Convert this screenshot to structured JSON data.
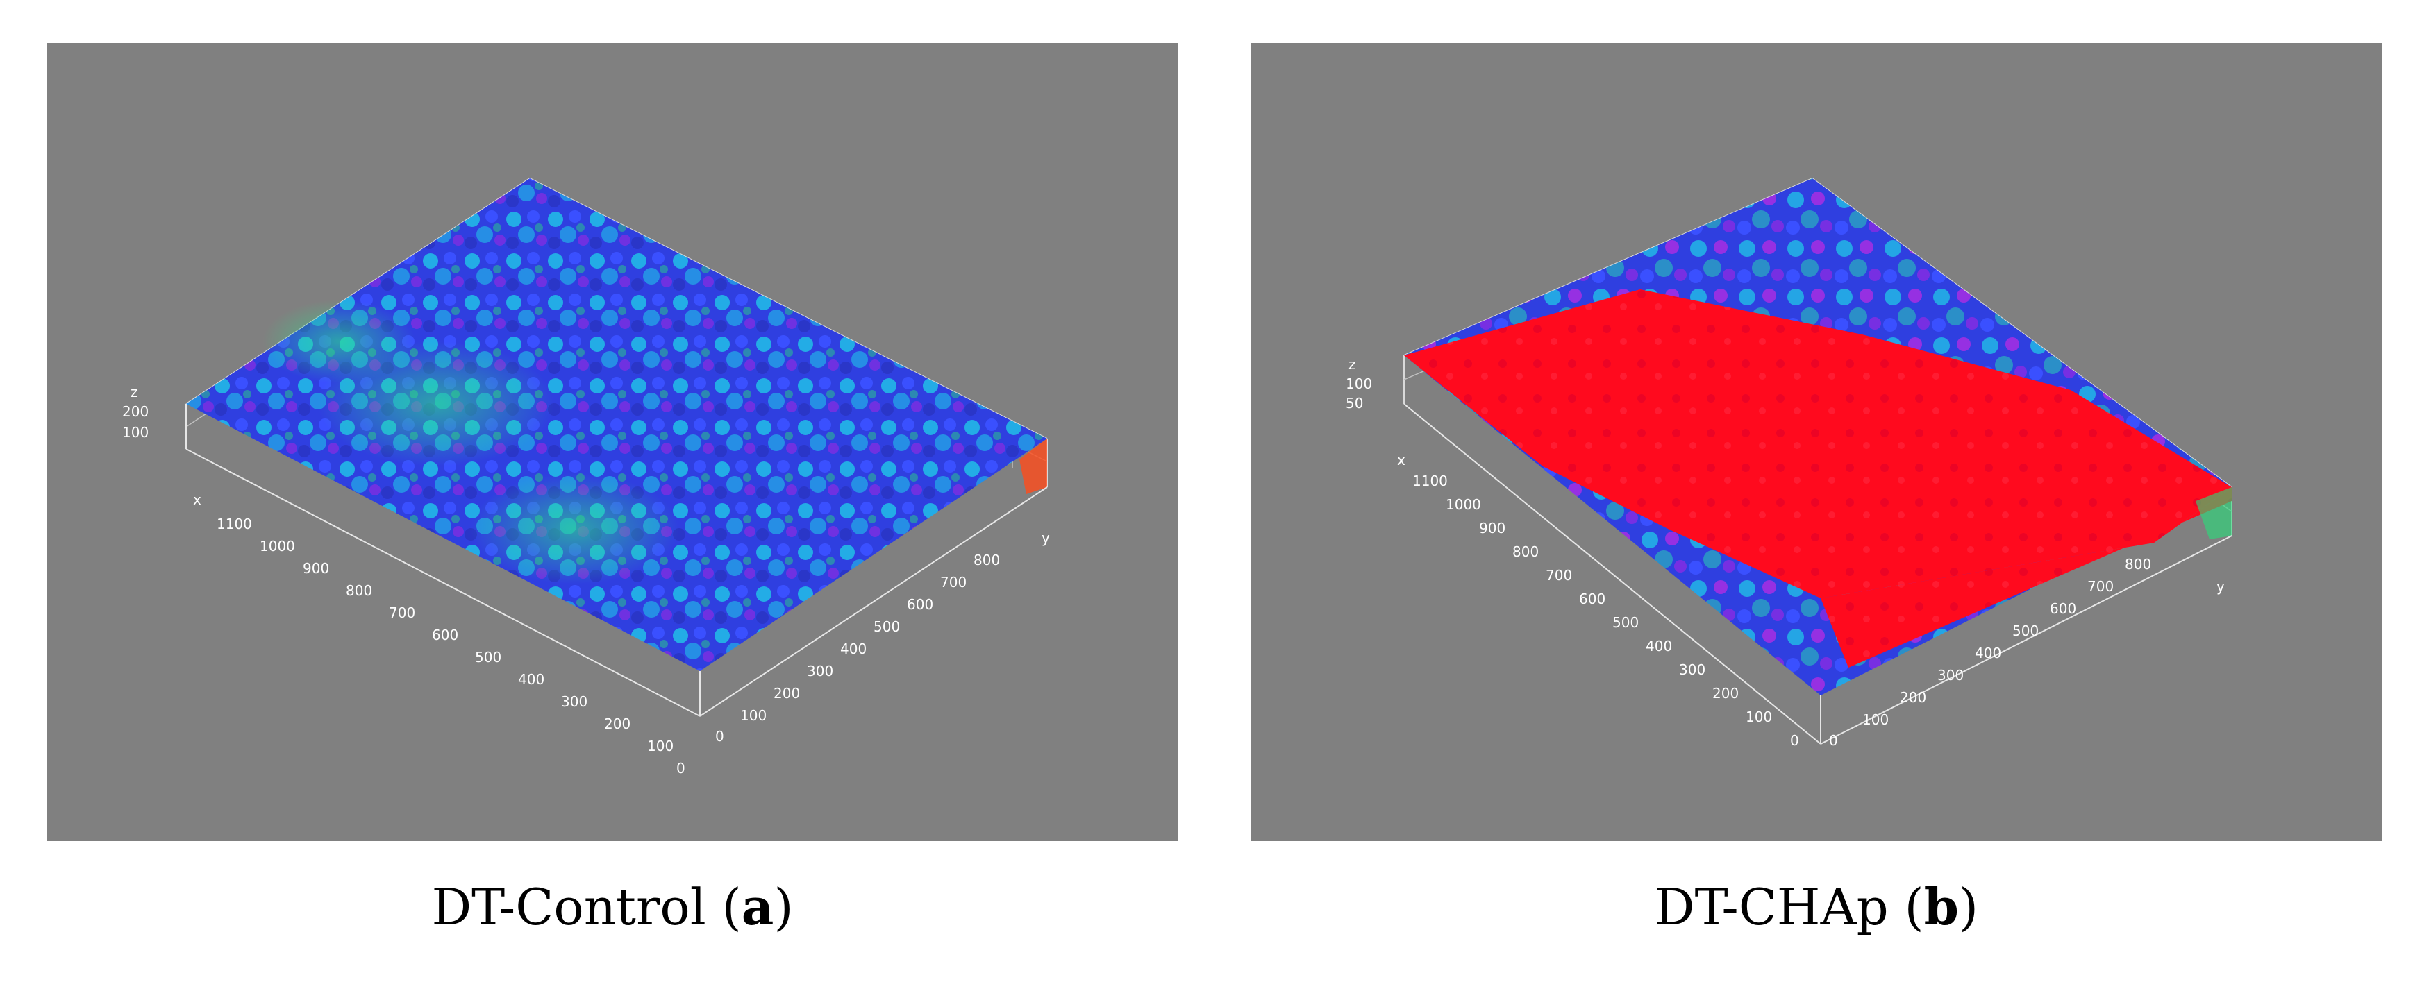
{
  "panels": [
    {
      "id": "a",
      "caption_name": "DT-Control",
      "caption_letter": "a",
      "z_axis_label": "z",
      "z_ticks": [
        "200",
        "100"
      ],
      "x_axis_label": "x",
      "x_ticks": [
        "1100",
        "1000",
        "900",
        "800",
        "700",
        "600",
        "500",
        "400",
        "300",
        "200",
        "100",
        "0"
      ],
      "y_axis_label": "y",
      "y_ticks": [
        "0",
        "100",
        "200",
        "300",
        "400",
        "500",
        "600",
        "700",
        "800"
      ],
      "surface_colors": {
        "base": "#2f3fe0",
        "highlight": "#1fd0e8",
        "accent": "#8a2be2",
        "edge": "#27e07a"
      }
    },
    {
      "id": "b",
      "caption_name": "DT-CHAp",
      "caption_letter": "b",
      "z_axis_label": "z",
      "z_ticks": [
        "100",
        "50"
      ],
      "x_axis_label": "x",
      "x_ticks": [
        "1100",
        "1000",
        "900",
        "800",
        "700",
        "600",
        "500",
        "400",
        "300",
        "200",
        "100",
        "0"
      ],
      "y_axis_label": "y",
      "y_ticks": [
        "0",
        "100",
        "200",
        "300",
        "400",
        "500",
        "600",
        "700",
        "800"
      ],
      "surface_colors": {
        "base": "#ff0a1e",
        "highlight": "#1fd0e8",
        "accent": "#b82be2",
        "edge": "#2f3fe0"
      }
    }
  ]
}
